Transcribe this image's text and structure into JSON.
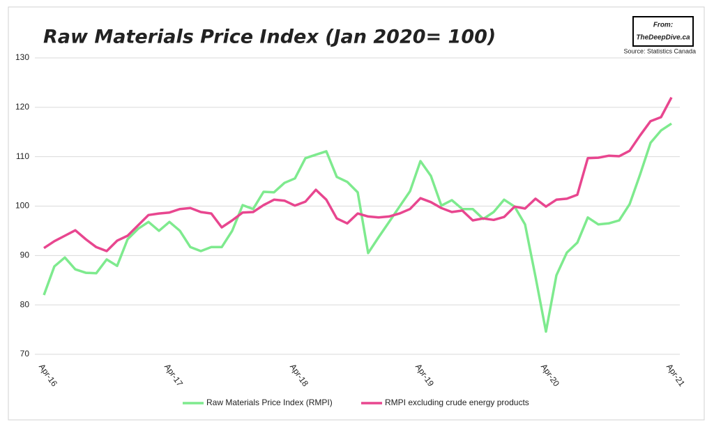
{
  "chart_data": {
    "type": "line",
    "title": "Raw Materials Price Index (Jan 2020= 100)",
    "logo": [
      "From:",
      "TheDeepDive.ca"
    ],
    "source": "Source: Statistics Canada",
    "categories": [
      "Apr-16",
      null,
      null,
      null,
      null,
      null,
      null,
      null,
      null,
      null,
      null,
      null,
      "Apr-17",
      null,
      null,
      null,
      null,
      null,
      null,
      null,
      null,
      null,
      null,
      null,
      "Apr-18",
      null,
      null,
      null,
      null,
      null,
      null,
      null,
      null,
      null,
      null,
      null,
      "Apr-19",
      null,
      null,
      null,
      null,
      null,
      null,
      null,
      null,
      null,
      null,
      null,
      "Apr-20",
      null,
      null,
      null,
      null,
      null,
      null,
      null,
      null,
      null,
      null,
      null,
      "Apr-21"
    ],
    "series": [
      {
        "name": "Raw Materials Price Index (RMPI)",
        "color": "#7eea8e",
        "values": [
          82.0,
          87.8,
          89.6,
          87.2,
          86.5,
          86.4,
          89.2,
          87.9,
          93.3,
          95.4,
          96.8,
          95.0,
          96.8,
          95.0,
          91.7,
          90.9,
          91.7,
          91.7,
          95.0,
          100.2,
          99.4,
          102.9,
          102.8,
          104.7,
          105.6,
          109.7,
          110.4,
          111.1,
          105.9,
          104.9,
          102.8,
          90.5,
          93.7,
          96.8,
          99.9,
          103.0,
          109.1,
          106.1,
          100.1,
          101.2,
          99.4,
          99.4,
          97.4,
          98.8,
          101.3,
          99.9,
          96.3,
          85.7,
          74.6,
          86.0,
          90.6,
          92.6,
          97.7,
          96.3,
          96.5,
          97.1,
          100.4,
          106.4,
          112.8,
          115.3,
          116.7
        ]
      },
      {
        "name": "RMPI excluding crude energy products",
        "color": "#e8468f",
        "values": [
          91.5,
          92.9,
          94.0,
          95.1,
          93.3,
          91.7,
          90.9,
          93.0,
          94.0,
          96.1,
          98.2,
          98.5,
          98.7,
          99.4,
          99.6,
          98.8,
          98.5,
          95.7,
          97.1,
          98.7,
          98.8,
          100.2,
          101.3,
          101.1,
          100.1,
          100.9,
          103.3,
          101.3,
          97.5,
          96.5,
          98.5,
          97.9,
          97.7,
          97.9,
          98.5,
          99.4,
          101.6,
          100.8,
          99.6,
          98.8,
          99.1,
          97.1,
          97.5,
          97.2,
          97.8,
          99.9,
          99.5,
          101.5,
          99.9,
          101.3,
          101.5,
          102.3,
          109.7,
          109.8,
          110.2,
          110.1,
          111.2,
          114.3,
          117.2,
          118.0,
          122.0
        ]
      }
    ],
    "ylim": [
      70,
      130
    ],
    "yticks": [
      70,
      80,
      90,
      100,
      110,
      120,
      130
    ],
    "grid": true
  }
}
